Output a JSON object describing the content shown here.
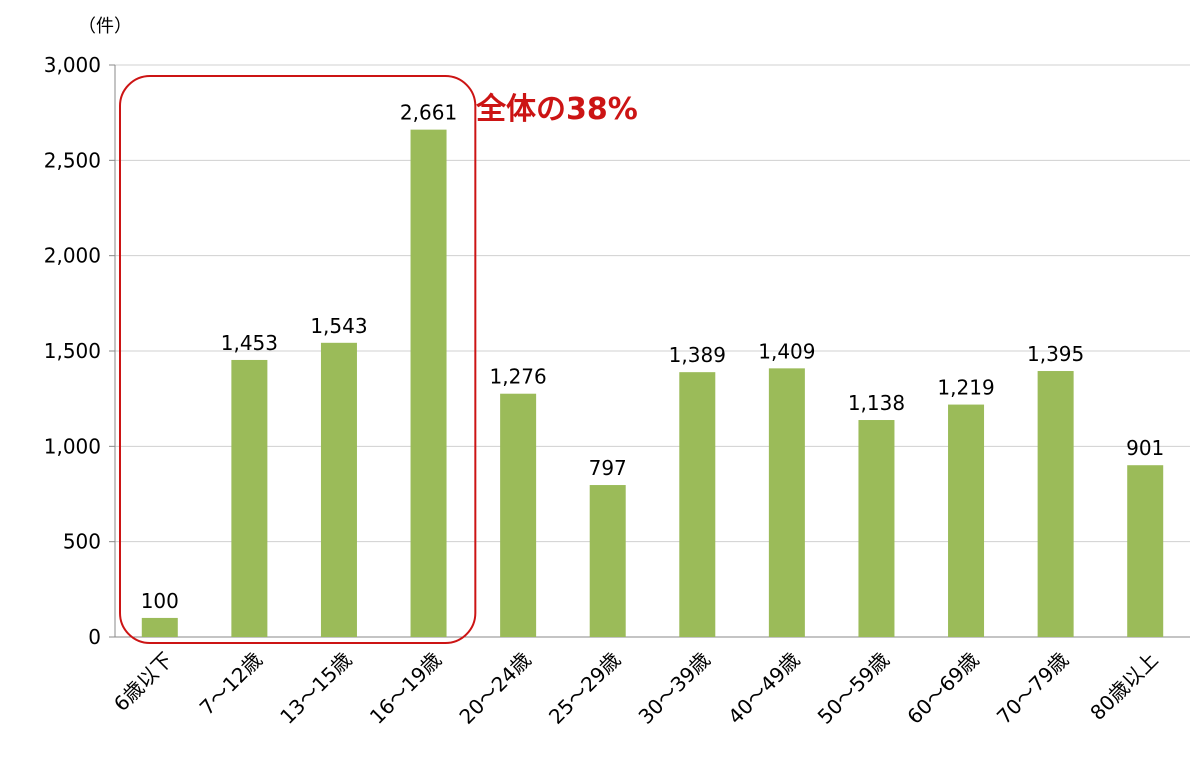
{
  "chart_data": {
    "type": "bar",
    "unit_label": "（件）",
    "categories": [
      "6歳以下",
      "7～12歳",
      "13～15歳",
      "16～19歳",
      "20～24歳",
      "25～29歳",
      "30～39歳",
      "40～49歳",
      "50～59歳",
      "60～69歳",
      "70～79歳",
      "80歳以上"
    ],
    "values": [
      100,
      1453,
      1543,
      2661,
      1276,
      797,
      1389,
      1409,
      1138,
      1219,
      1395,
      901
    ],
    "data_labels": [
      "100",
      "1,453",
      "1,543",
      "2,661",
      "1,276",
      "797",
      "1,389",
      "1,409",
      "1,138",
      "1,219",
      "1,395",
      "901"
    ],
    "yticks": [
      0,
      500,
      1000,
      1500,
      2000,
      2500,
      3000
    ],
    "ytick_labels": [
      "0",
      "500",
      "1,000",
      "1,500",
      "2,000",
      "2,500",
      "3,000"
    ],
    "ylim": [
      0,
      3000
    ],
    "grid": true,
    "bar_color": "#9bbb59",
    "highlight": {
      "categories": [
        "6歳以下",
        "7～12歳",
        "13～15歳",
        "16～19歳"
      ],
      "label": "全体の38%",
      "color": "#cc1414"
    }
  }
}
